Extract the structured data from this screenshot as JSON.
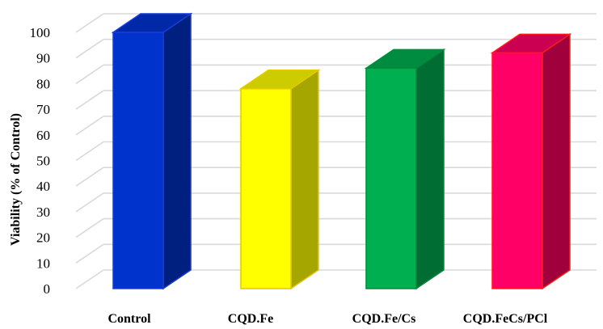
{
  "chart_data": {
    "type": "bar",
    "title": "",
    "xlabel": "",
    "ylabel": "Viability (% of Control)",
    "ylim": [
      0,
      100
    ],
    "yticks": [
      0,
      10,
      20,
      30,
      40,
      50,
      60,
      70,
      80,
      90,
      100
    ],
    "grid": true,
    "three_d": true,
    "categories": [
      "Control",
      "CQD.Fe",
      "CQD.Fe/Cs",
      "CQD.FeCs/PCl"
    ],
    "values": [
      100,
      78,
      86,
      92
    ],
    "colors": [
      {
        "front": "#0033cc",
        "side": "#002080",
        "top": "#0029a8",
        "edge": "#1a3adb"
      },
      {
        "front": "#ffff00",
        "side": "#a6a600",
        "top": "#cccc00",
        "edge": "#e6c800"
      },
      {
        "front": "#00b050",
        "side": "#006e32",
        "top": "#008c40",
        "edge": "#008a3c"
      },
      {
        "front": "#ff0066",
        "side": "#a0003c",
        "top": "#cc0052",
        "edge": "#ff1a1a"
      }
    ],
    "grid_color": "#d9d9d9"
  }
}
